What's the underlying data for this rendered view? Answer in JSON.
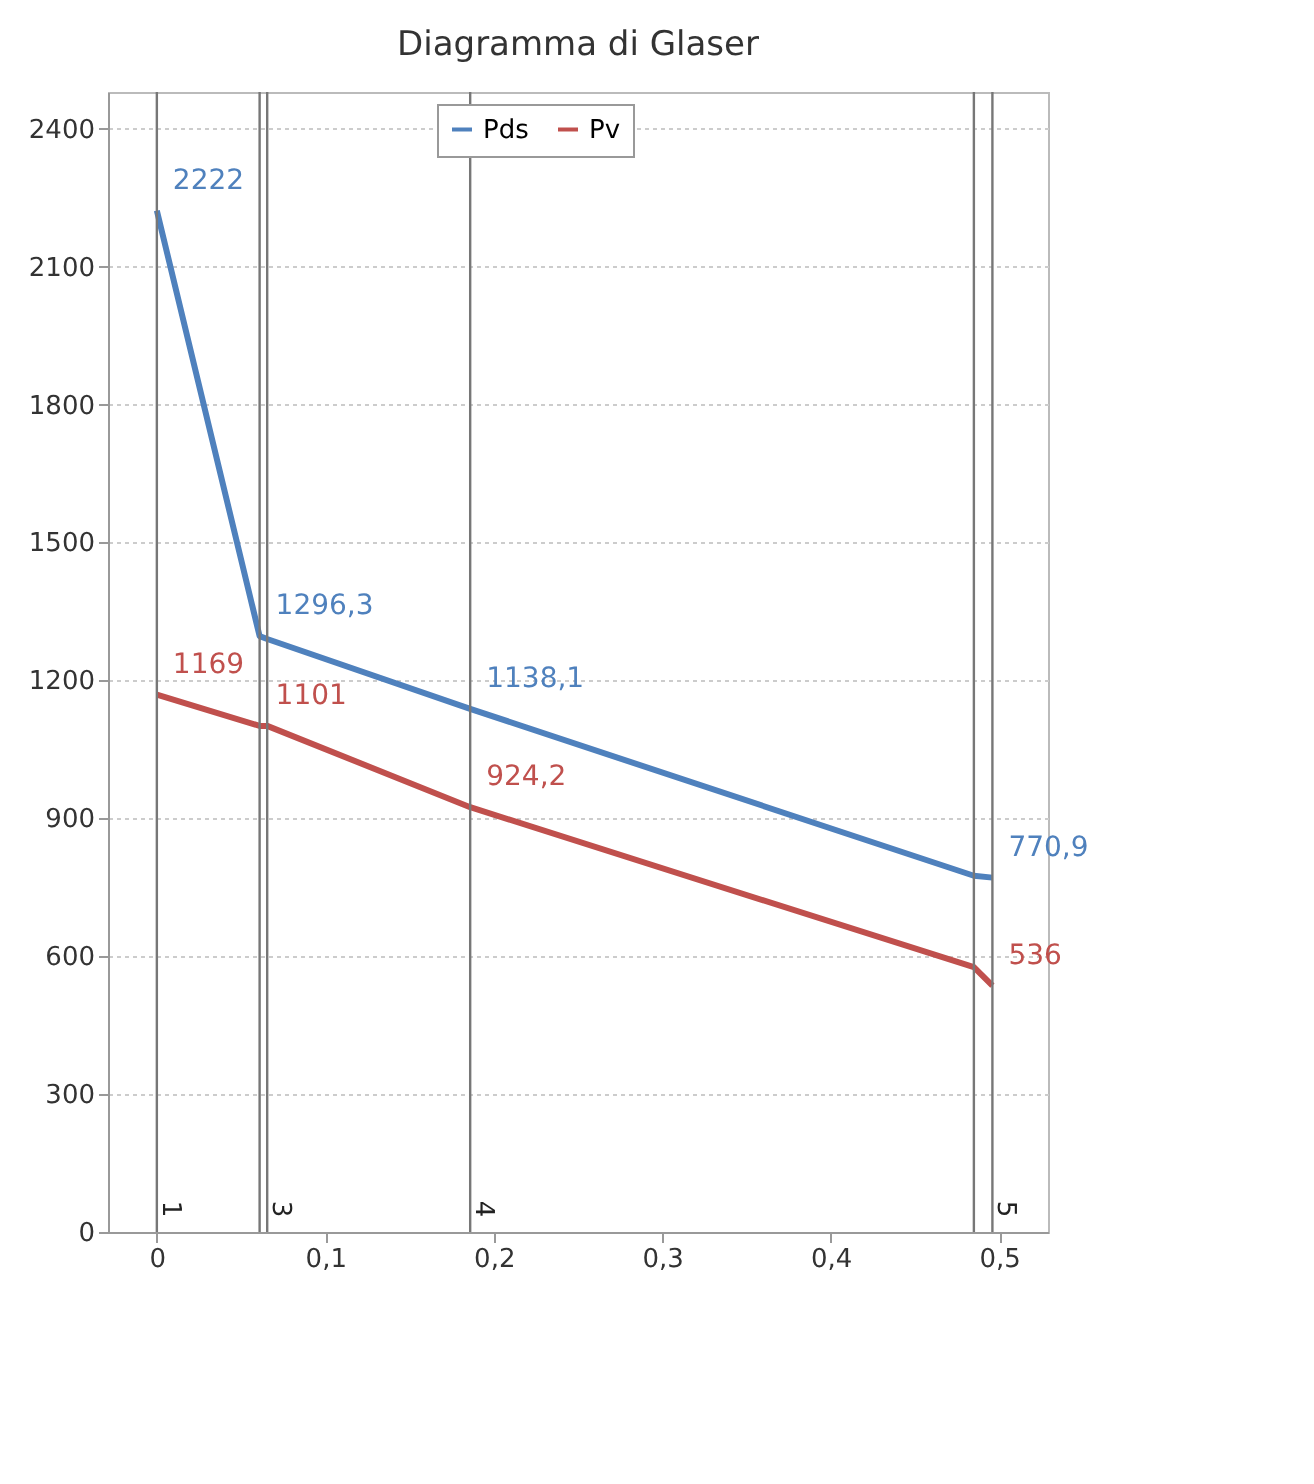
{
  "chart_data": {
    "type": "line",
    "title": "Diagramma di Glaser",
    "x": [
      0,
      0.061,
      0.0655,
      0.186,
      0.485,
      0.496
    ],
    "series": [
      {
        "name": "Pds",
        "color": "#4f81bd",
        "values": [
          2222,
          1296.3,
          1290,
          1138.1,
          775,
          770.9
        ],
        "value_labels": [
          "2222",
          "1296,3",
          null,
          "1138,1",
          null,
          "770,9"
        ]
      },
      {
        "name": "Pv",
        "color": "#c0504d",
        "values": [
          1169,
          1101,
          1101,
          924.2,
          576,
          536
        ],
        "value_labels": [
          "1169",
          "1101",
          null,
          "924,2",
          null,
          "536"
        ]
      }
    ],
    "xlim": [
      -0.029,
      0.529
    ],
    "xticks": [
      0,
      {
        "value": 0.1,
        "label": "0,1"
      },
      {
        "value": 0.2,
        "label": "0,2"
      },
      {
        "value": 0.3,
        "label": "0,3"
      },
      {
        "value": 0.4,
        "label": "0,4"
      },
      {
        "value": 0.5,
        "label": "0,5"
      }
    ],
    "ylim": [
      0,
      2480
    ],
    "yticks": [
      0,
      300,
      600,
      900,
      1200,
      1500,
      1800,
      2100,
      2400
    ],
    "grid": "y",
    "legend": "top",
    "ref_lines": [
      {
        "axis": "x",
        "value": 0
      },
      {
        "axis": "x",
        "value": 0.061
      },
      {
        "axis": "x",
        "value": 0.0655
      },
      {
        "axis": "x",
        "value": 0.186
      },
      {
        "axis": "x",
        "value": 0.485
      },
      {
        "axis": "x",
        "value": 0.496
      }
    ],
    "annotations": [
      {
        "text": "1",
        "x": 0,
        "y": 50
      },
      {
        "text": "3",
        "x": 0.0655,
        "y": 50
      },
      {
        "text": "4",
        "x": 0.186,
        "y": 50
      },
      {
        "text": "5",
        "x": 0.496,
        "y": 50
      }
    ]
  }
}
